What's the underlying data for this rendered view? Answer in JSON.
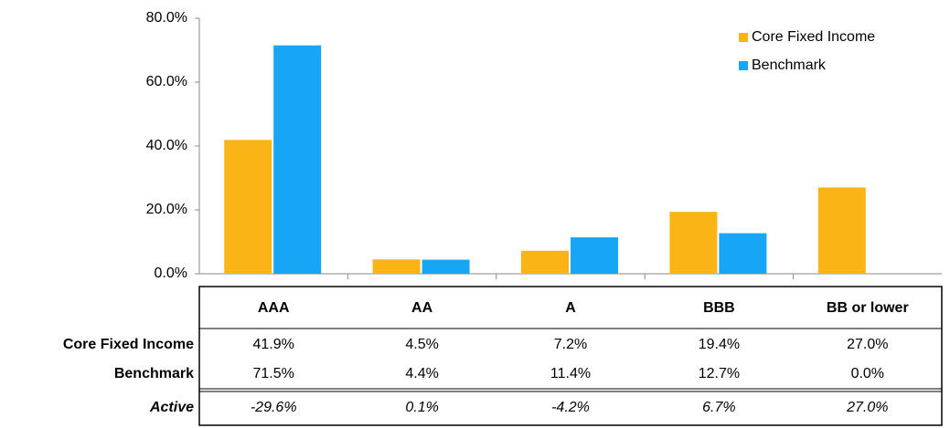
{
  "chart_data": {
    "type": "bar",
    "categories": [
      "AAA",
      "AA",
      "A",
      "BBB",
      "BB or lower"
    ],
    "series": [
      {
        "name": "Core Fixed Income",
        "color": "#fbb416",
        "values": [
          41.9,
          4.5,
          7.2,
          19.4,
          27.0
        ],
        "value_labels": [
          "41.9%",
          "4.5%",
          "7.2%",
          "19.4%",
          "27.0%"
        ]
      },
      {
        "name": "Benchmark",
        "color": "#16a6f5",
        "values": [
          71.5,
          4.4,
          11.4,
          12.7,
          0.0
        ],
        "value_labels": [
          "71.5%",
          "4.4%",
          "11.4%",
          "12.7%",
          "0.0%"
        ]
      }
    ],
    "ylim": [
      0,
      80
    ],
    "yticks": [
      {
        "value": 0,
        "label": "0.0%"
      },
      {
        "value": 20,
        "label": "20.0%"
      },
      {
        "value": 40,
        "label": "40.0%"
      },
      {
        "value": 60,
        "label": "60.0%"
      },
      {
        "value": 80,
        "label": "80.0%"
      }
    ],
    "legend": "top-right",
    "grid": false,
    "table": {
      "row_label": "Active",
      "values": [
        "-29.6%",
        "0.1%",
        "-4.2%",
        "6.7%",
        "27.0%"
      ]
    }
  }
}
